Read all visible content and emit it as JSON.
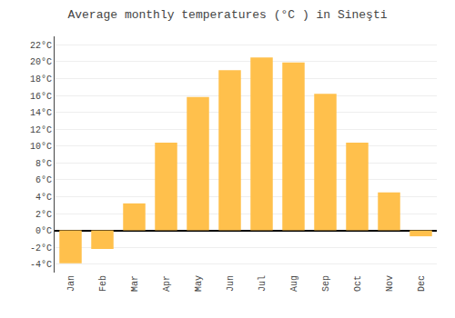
{
  "chart_data": {
    "type": "bar",
    "title": "Average monthly temperatures (°C ) in Sineşti",
    "categories": [
      "Jan",
      "Feb",
      "Mar",
      "Apr",
      "May",
      "Jun",
      "Jul",
      "Aug",
      "Sep",
      "Oct",
      "Nov",
      "Dec"
    ],
    "values": [
      -3.9,
      -2.2,
      3.2,
      10.4,
      15.8,
      19.0,
      20.5,
      19.9,
      16.2,
      10.4,
      4.5,
      -0.7
    ],
    "color": "#FFC04C",
    "ylim": [
      -5,
      23
    ],
    "yticks": [
      {
        "value": -4,
        "label": "-4°C"
      },
      {
        "value": -2,
        "label": "-2°C"
      },
      {
        "value": 0,
        "label": "0°C"
      },
      {
        "value": 2,
        "label": "2°C"
      },
      {
        "value": 4,
        "label": "4°C"
      },
      {
        "value": 6,
        "label": "6°C"
      },
      {
        "value": 8,
        "label": "8°C"
      },
      {
        "value": 10,
        "label": "10°C"
      },
      {
        "value": 12,
        "label": "12°C"
      },
      {
        "value": 14,
        "label": "14°C"
      },
      {
        "value": 16,
        "label": "16°C"
      },
      {
        "value": 18,
        "label": "18°C"
      },
      {
        "value": 20,
        "label": "20°C"
      },
      {
        "value": 22,
        "label": "22°C"
      }
    ],
    "grid": true
  }
}
